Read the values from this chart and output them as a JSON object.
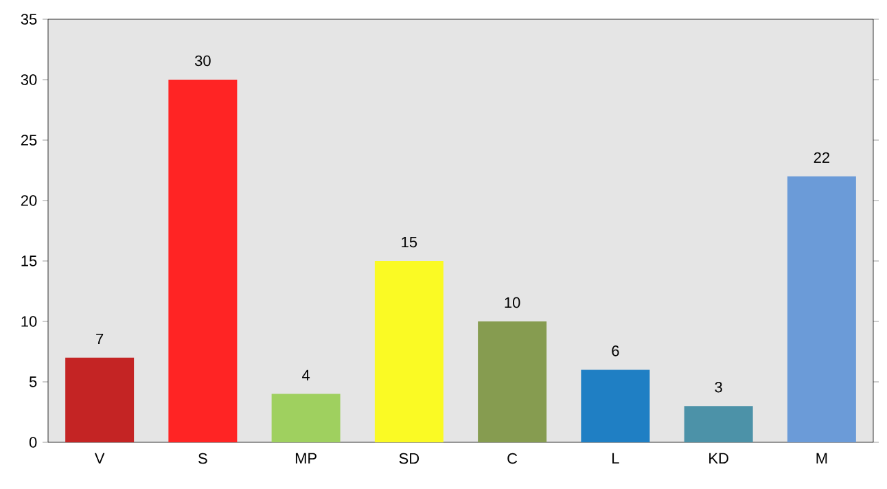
{
  "chart_data": {
    "type": "bar",
    "categories": [
      "V",
      "S",
      "MP",
      "SD",
      "C",
      "L",
      "KD",
      "M"
    ],
    "values": [
      7,
      30,
      4,
      15,
      10,
      6,
      3,
      22
    ],
    "colors": [
      "#c42424",
      "#ff2424",
      "#9fd05f",
      "#fafa24",
      "#869c50",
      "#1f7fc4",
      "#4c92a8",
      "#6b9bd8"
    ],
    "ylim": [
      0,
      35
    ],
    "yticks": [
      0,
      5,
      10,
      15,
      20,
      25,
      30,
      35
    ],
    "data_labels": true,
    "grid": false
  }
}
